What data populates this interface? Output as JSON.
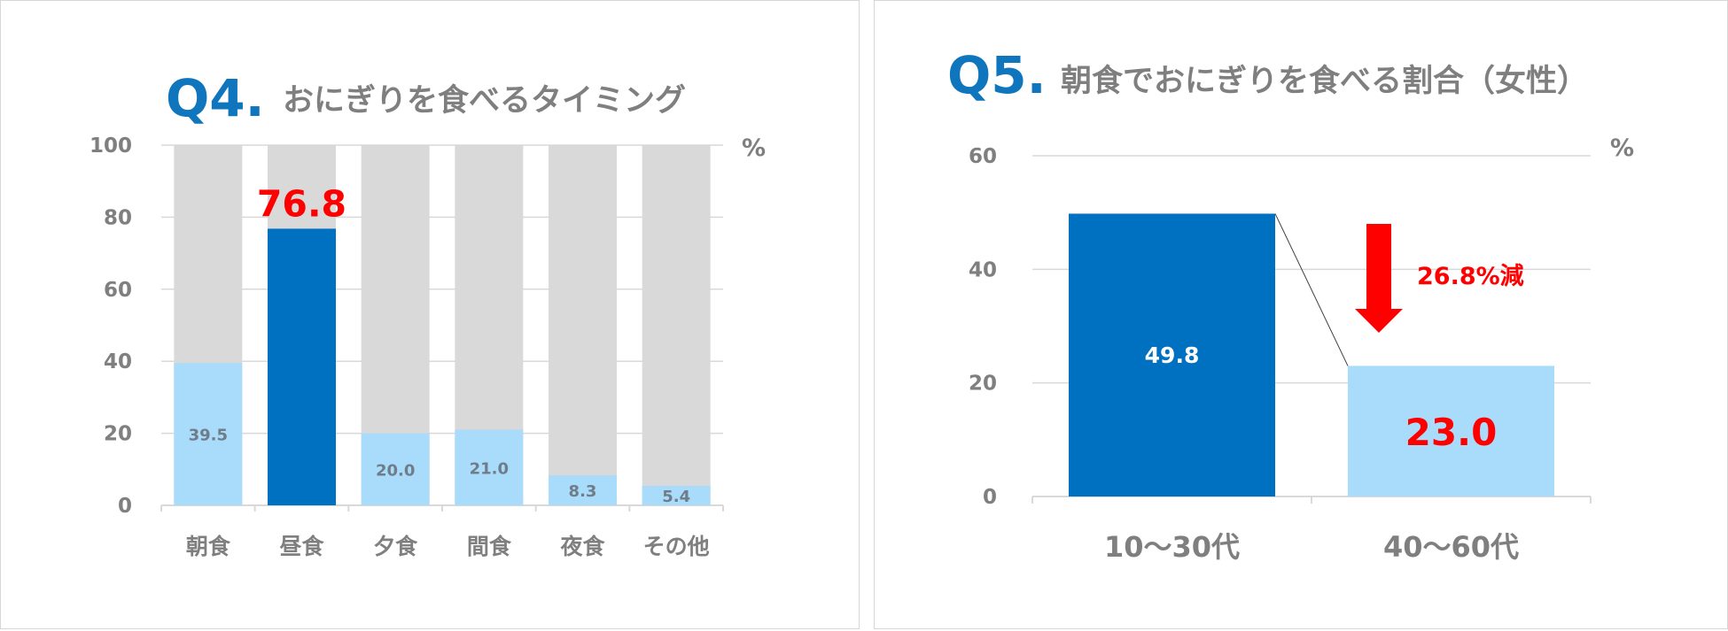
{
  "colors": {
    "accent_blue": "#0f75bc",
    "dark_blue_bar": "#0070c0",
    "light_blue_bar": "#a9dbfa",
    "background_bar": "#d9d9d9",
    "highlight_red": "#ff0000",
    "text_gray": "#7f7f7f"
  },
  "chart_data": [
    {
      "type": "bar",
      "stacked_background": true,
      "question_number": "Q4.",
      "title": "おにぎりを食べるタイミング",
      "unit": "%",
      "categories": [
        "朝食",
        "昼食",
        "夕食",
        "間食",
        "夜食",
        "その他"
      ],
      "values": [
        39.5,
        76.8,
        20.0,
        21.0,
        8.3,
        5.4
      ],
      "value_labels": [
        "39.5",
        "76.8",
        "20.0",
        "21.0",
        "8.3",
        "5.4"
      ],
      "highlight_index": 1,
      "ylim": [
        0,
        100
      ],
      "yticks": [
        "0",
        "20",
        "40",
        "60",
        "80",
        "100"
      ],
      "grid": true
    },
    {
      "type": "bar",
      "question_number": "Q5.",
      "title": "朝食でおにぎりを食べる割合（女性）",
      "unit": "%",
      "categories": [
        "10～30代",
        "40～60代"
      ],
      "values": [
        49.8,
        23.0
      ],
      "value_labels": [
        "49.8",
        "23.0"
      ],
      "ylim": [
        0,
        60
      ],
      "yticks": [
        "0",
        "20",
        "40",
        "60"
      ],
      "grid": true,
      "annotation": "26.8%減"
    }
  ]
}
